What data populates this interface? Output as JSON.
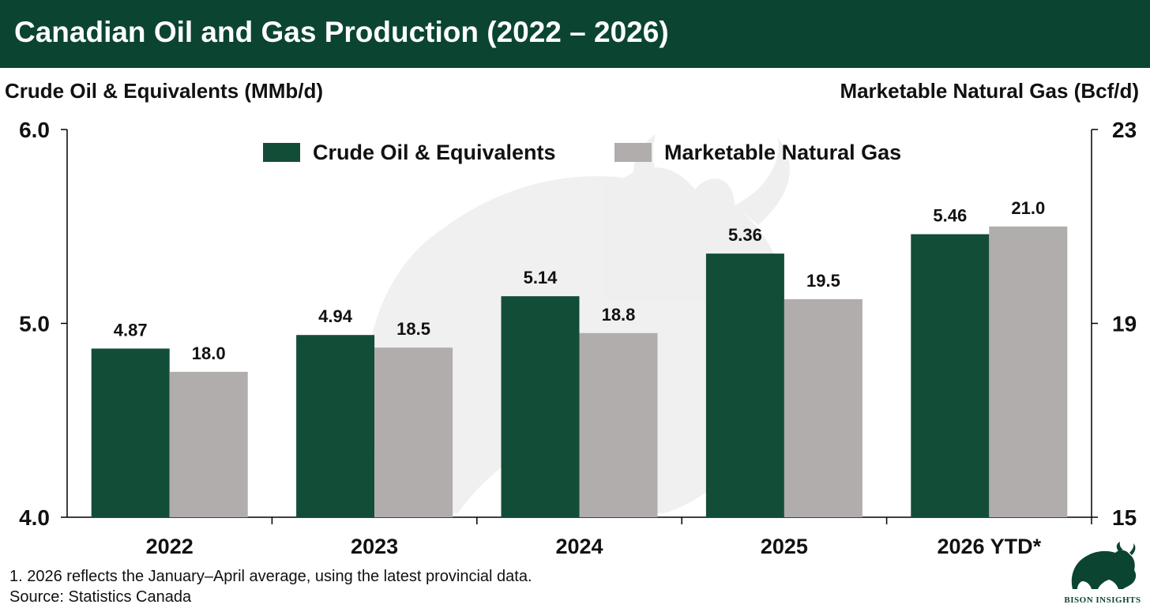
{
  "header": {
    "title": "Canadian Oil and Gas Production (2022 – 2026)",
    "background": "#0b4531"
  },
  "chart_data": {
    "type": "bar",
    "categories": [
      "2022",
      "2023",
      "2024",
      "2025",
      "2026 YTD*"
    ],
    "series": [
      {
        "name": "Crude Oil & Equivalents",
        "axis": "left",
        "values": [
          4.87,
          4.94,
          5.14,
          5.36,
          5.46
        ],
        "labels": [
          "4.87",
          "4.94",
          "5.14",
          "5.36",
          "5.46"
        ],
        "color": "#124d38"
      },
      {
        "name": "Marketable Natural Gas",
        "axis": "right",
        "values": [
          18.0,
          18.5,
          18.8,
          19.5,
          21.0
        ],
        "labels": [
          "18.0",
          "18.5",
          "18.8",
          "19.5",
          "21.0"
        ],
        "color": "#b0adac"
      }
    ],
    "left_axis": {
      "label": "Crude Oil & Equivalents (MMb/d)",
      "range": [
        4.0,
        6.0
      ],
      "ticks": [
        "4.0",
        "5.0",
        "6.0"
      ]
    },
    "right_axis": {
      "label": "Marketable Natural Gas (Bcf/d)",
      "range": [
        15,
        23
      ],
      "ticks": [
        "15",
        "19",
        "23"
      ]
    },
    "legend_position": "top-center",
    "grid": false
  },
  "footnote": "1. 2026 reflects the January–April average, using the latest provincial data.",
  "source": "Source: Statistics Canada",
  "logo": {
    "text": "BISON INSIGHTS",
    "icon": "bison-icon",
    "color": "#0b4531"
  }
}
